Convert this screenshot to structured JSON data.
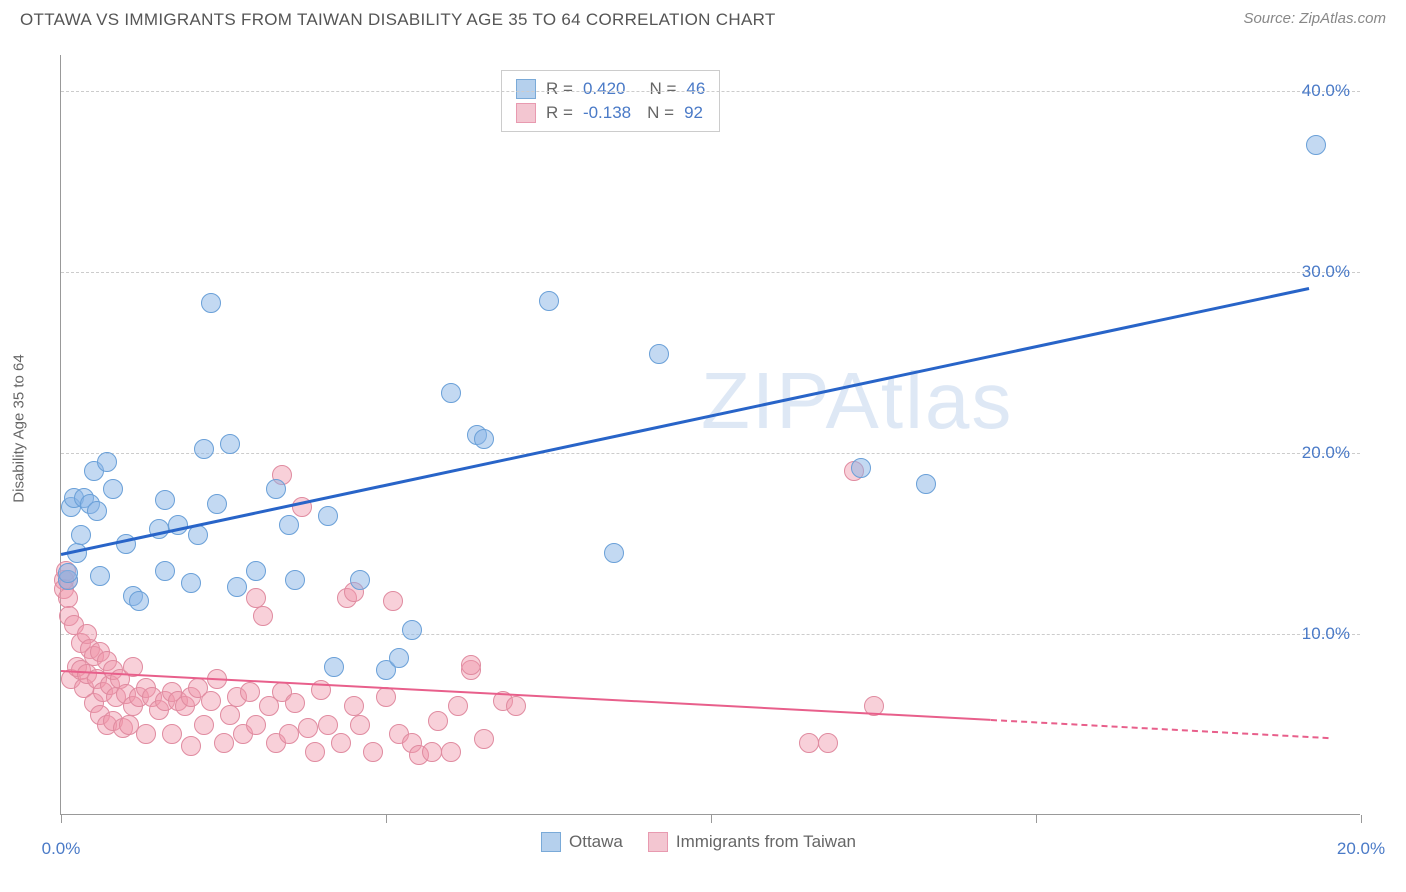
{
  "header": {
    "title": "OTTAWA VS IMMIGRANTS FROM TAIWAN DISABILITY AGE 35 TO 64 CORRELATION CHART",
    "source": "Source: ZipAtlas.com"
  },
  "chart": {
    "type": "scatter",
    "y_axis_label": "Disability Age 35 to 64",
    "xlim": [
      0,
      20
    ],
    "ylim": [
      0,
      42
    ],
    "x_ticks": [
      0,
      5,
      10,
      15,
      20
    ],
    "x_tick_labels": [
      "0.0%",
      "",
      "",
      "",
      "20.0%"
    ],
    "y_ticks": [
      10,
      20,
      30,
      40
    ],
    "y_tick_labels": [
      "10.0%",
      "20.0%",
      "30.0%",
      "40.0%"
    ],
    "grid_color": "#cccccc",
    "background_color": "#ffffff",
    "axis_color": "#999999",
    "tick_label_color": "#4a7ac7",
    "axis_label_color": "#666666",
    "axis_label_fontsize": 15,
    "tick_label_fontsize": 17,
    "marker_size": 20,
    "series": {
      "ottawa": {
        "label": "Ottawa",
        "color_fill": "rgba(135,180,230,0.5)",
        "color_stroke": "#6aa0d8",
        "swatch_fill": "#b5d0ed",
        "swatch_stroke": "#7aaad8",
        "R": "0.420",
        "N": "46",
        "trend": {
          "x1": 0,
          "y1": 14.5,
          "x2": 19.2,
          "y2": 29.2,
          "color": "#2864c8",
          "width": 2.5
        },
        "points": [
          [
            0.1,
            13.0
          ],
          [
            0.1,
            13.4
          ],
          [
            0.15,
            17.0
          ],
          [
            0.2,
            17.5
          ],
          [
            0.25,
            14.5
          ],
          [
            0.3,
            15.5
          ],
          [
            0.35,
            17.5
          ],
          [
            0.45,
            17.2
          ],
          [
            0.5,
            19.0
          ],
          [
            0.55,
            16.8
          ],
          [
            0.6,
            13.2
          ],
          [
            0.7,
            19.5
          ],
          [
            0.8,
            18.0
          ],
          [
            1.0,
            15.0
          ],
          [
            1.1,
            12.1
          ],
          [
            1.2,
            11.8
          ],
          [
            1.5,
            15.8
          ],
          [
            1.6,
            13.5
          ],
          [
            1.6,
            17.4
          ],
          [
            1.8,
            16.0
          ],
          [
            2.0,
            12.8
          ],
          [
            2.1,
            15.5
          ],
          [
            2.2,
            20.2
          ],
          [
            2.3,
            28.3
          ],
          [
            2.4,
            17.2
          ],
          [
            2.6,
            20.5
          ],
          [
            2.7,
            12.6
          ],
          [
            3.0,
            13.5
          ],
          [
            3.3,
            18.0
          ],
          [
            3.5,
            16.0
          ],
          [
            3.6,
            13.0
          ],
          [
            4.1,
            16.5
          ],
          [
            4.2,
            8.2
          ],
          [
            4.6,
            13.0
          ],
          [
            5.0,
            8.0
          ],
          [
            5.2,
            8.7
          ],
          [
            5.4,
            10.2
          ],
          [
            6.0,
            23.3
          ],
          [
            6.4,
            21.0
          ],
          [
            6.5,
            20.8
          ],
          [
            7.5,
            28.4
          ],
          [
            8.5,
            14.5
          ],
          [
            9.2,
            25.5
          ],
          [
            12.3,
            19.2
          ],
          [
            13.3,
            18.3
          ],
          [
            19.3,
            37.0
          ]
        ]
      },
      "taiwan": {
        "label": "Immigrants from Taiwan",
        "color_fill": "rgba(240,150,170,0.45)",
        "color_stroke": "#e08ba0",
        "swatch_fill": "#f3c6d1",
        "swatch_stroke": "#e89ab0",
        "R": "-0.138",
        "N": "92",
        "trend": {
          "x1": 0,
          "y1": 8.0,
          "x2": 14.3,
          "y2": 5.3,
          "color": "#e85f8b",
          "width": 2,
          "dash_x2": 19.5,
          "dash_y2": 4.3
        },
        "points": [
          [
            0.05,
            13.0
          ],
          [
            0.05,
            12.5
          ],
          [
            0.08,
            13.5
          ],
          [
            0.1,
            13.0
          ],
          [
            0.1,
            12.0
          ],
          [
            0.12,
            11.0
          ],
          [
            0.15,
            7.5
          ],
          [
            0.2,
            10.5
          ],
          [
            0.25,
            8.2
          ],
          [
            0.3,
            9.5
          ],
          [
            0.3,
            8.0
          ],
          [
            0.35,
            7.0
          ],
          [
            0.4,
            10.0
          ],
          [
            0.4,
            7.8
          ],
          [
            0.45,
            9.2
          ],
          [
            0.5,
            8.8
          ],
          [
            0.5,
            6.2
          ],
          [
            0.55,
            7.5
          ],
          [
            0.6,
            9.0
          ],
          [
            0.6,
            5.5
          ],
          [
            0.65,
            6.8
          ],
          [
            0.7,
            8.5
          ],
          [
            0.7,
            5.0
          ],
          [
            0.75,
            7.2
          ],
          [
            0.8,
            8.0
          ],
          [
            0.8,
            5.2
          ],
          [
            0.85,
            6.5
          ],
          [
            0.9,
            7.5
          ],
          [
            0.95,
            4.8
          ],
          [
            1.0,
            6.7
          ],
          [
            1.05,
            5.0
          ],
          [
            1.1,
            8.2
          ],
          [
            1.1,
            6.0
          ],
          [
            1.2,
            6.5
          ],
          [
            1.3,
            7.0
          ],
          [
            1.3,
            4.5
          ],
          [
            1.4,
            6.5
          ],
          [
            1.5,
            5.8
          ],
          [
            1.6,
            6.3
          ],
          [
            1.7,
            4.5
          ],
          [
            1.7,
            6.8
          ],
          [
            1.8,
            6.3
          ],
          [
            1.9,
            6.0
          ],
          [
            2.0,
            3.8
          ],
          [
            2.0,
            6.5
          ],
          [
            2.1,
            7.0
          ],
          [
            2.2,
            5.0
          ],
          [
            2.3,
            6.3
          ],
          [
            2.4,
            7.5
          ],
          [
            2.5,
            4.0
          ],
          [
            2.6,
            5.5
          ],
          [
            2.7,
            6.5
          ],
          [
            2.8,
            4.5
          ],
          [
            2.9,
            6.8
          ],
          [
            3.0,
            5.0
          ],
          [
            3.0,
            12.0
          ],
          [
            3.1,
            11.0
          ],
          [
            3.2,
            6.0
          ],
          [
            3.3,
            4.0
          ],
          [
            3.4,
            6.8
          ],
          [
            3.4,
            18.8
          ],
          [
            3.5,
            4.5
          ],
          [
            3.6,
            6.2
          ],
          [
            3.7,
            17.0
          ],
          [
            3.8,
            4.8
          ],
          [
            3.9,
            3.5
          ],
          [
            4.0,
            6.9
          ],
          [
            4.1,
            5.0
          ],
          [
            4.3,
            4.0
          ],
          [
            4.4,
            12.0
          ],
          [
            4.5,
            6.0
          ],
          [
            4.5,
            12.3
          ],
          [
            4.6,
            5.0
          ],
          [
            4.8,
            3.5
          ],
          [
            5.0,
            6.5
          ],
          [
            5.1,
            11.8
          ],
          [
            5.2,
            4.5
          ],
          [
            5.4,
            4.0
          ],
          [
            5.5,
            3.3
          ],
          [
            5.7,
            3.5
          ],
          [
            5.8,
            5.2
          ],
          [
            6.0,
            3.5
          ],
          [
            6.1,
            6.0
          ],
          [
            6.3,
            8.0
          ],
          [
            6.3,
            8.3
          ],
          [
            6.5,
            4.2
          ],
          [
            6.8,
            6.3
          ],
          [
            7.0,
            6.0
          ],
          [
            11.5,
            4.0
          ],
          [
            11.8,
            4.0
          ],
          [
            12.2,
            19.0
          ],
          [
            12.5,
            6.0
          ]
        ]
      }
    },
    "watermark": {
      "text": "ZIPAtlas",
      "color": "rgba(160,190,225,0.35)",
      "fontsize": 80
    }
  }
}
